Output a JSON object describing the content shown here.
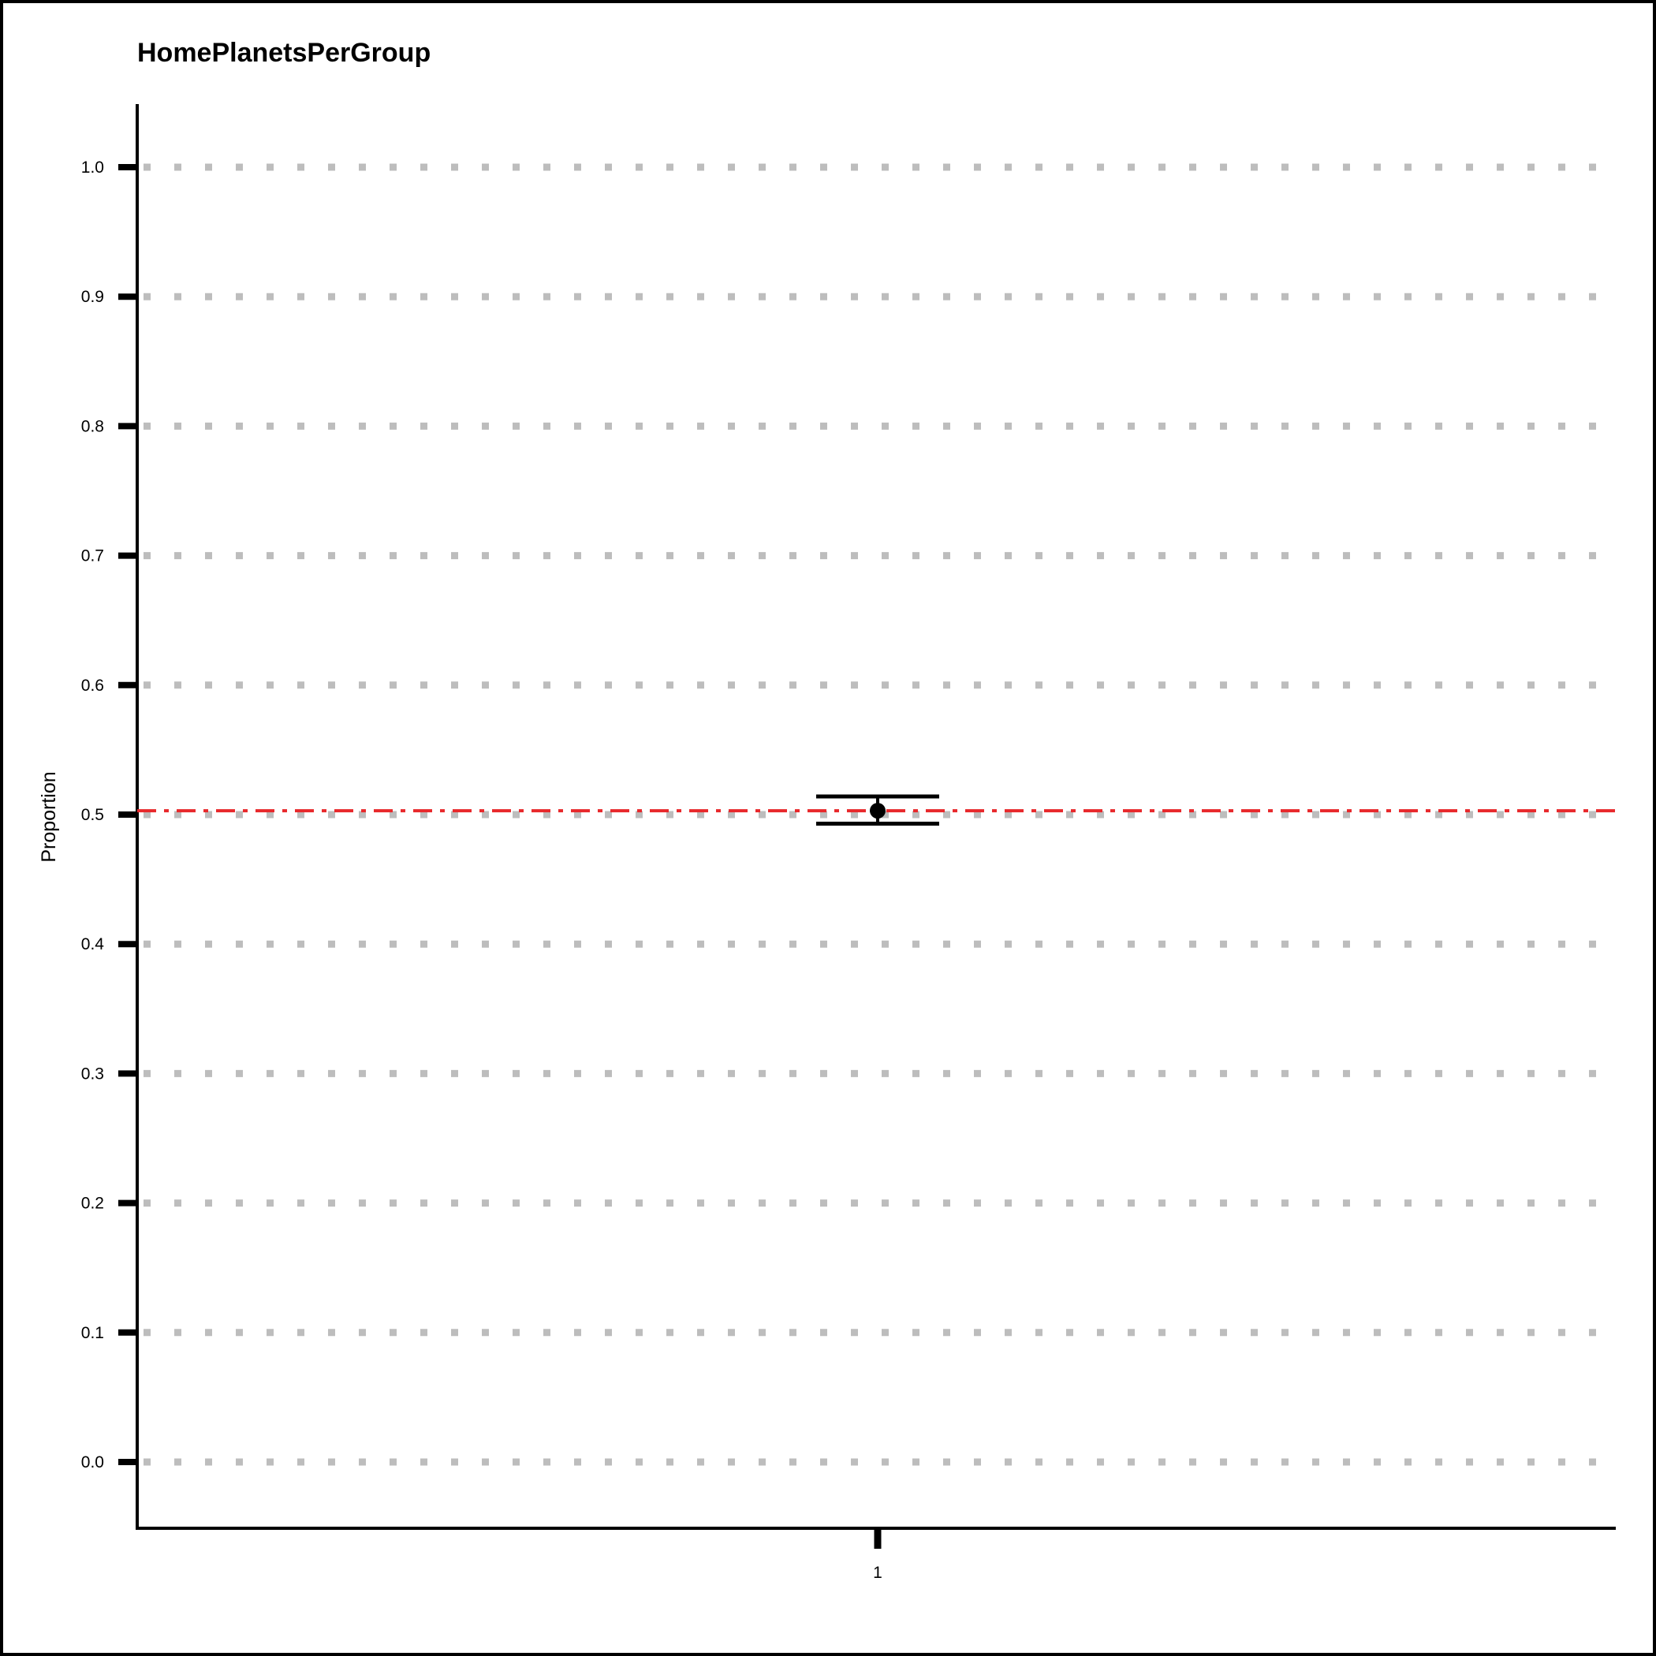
{
  "chart_data": {
    "type": "scatter",
    "title": "HomePlanetsPerGroup",
    "xlabel": "",
    "ylabel": "Proportion",
    "categories": [
      "1"
    ],
    "points": [
      {
        "category": "1",
        "value": 0.503,
        "ci_low": 0.493,
        "ci_high": 0.514
      }
    ],
    "reference_line": {
      "value": 0.503,
      "color": "#e8282b",
      "style": "dash-dot"
    },
    "yticks": [
      "0.0",
      "0.1",
      "0.2",
      "0.3",
      "0.4",
      "0.5",
      "0.6",
      "0.7",
      "0.8",
      "0.9",
      "1.0"
    ],
    "ylim": [
      -0.05,
      1.05
    ],
    "grid": {
      "horizontal": true,
      "style": "dotted",
      "color": "#bdbdbd"
    },
    "point_color": "#000000"
  }
}
